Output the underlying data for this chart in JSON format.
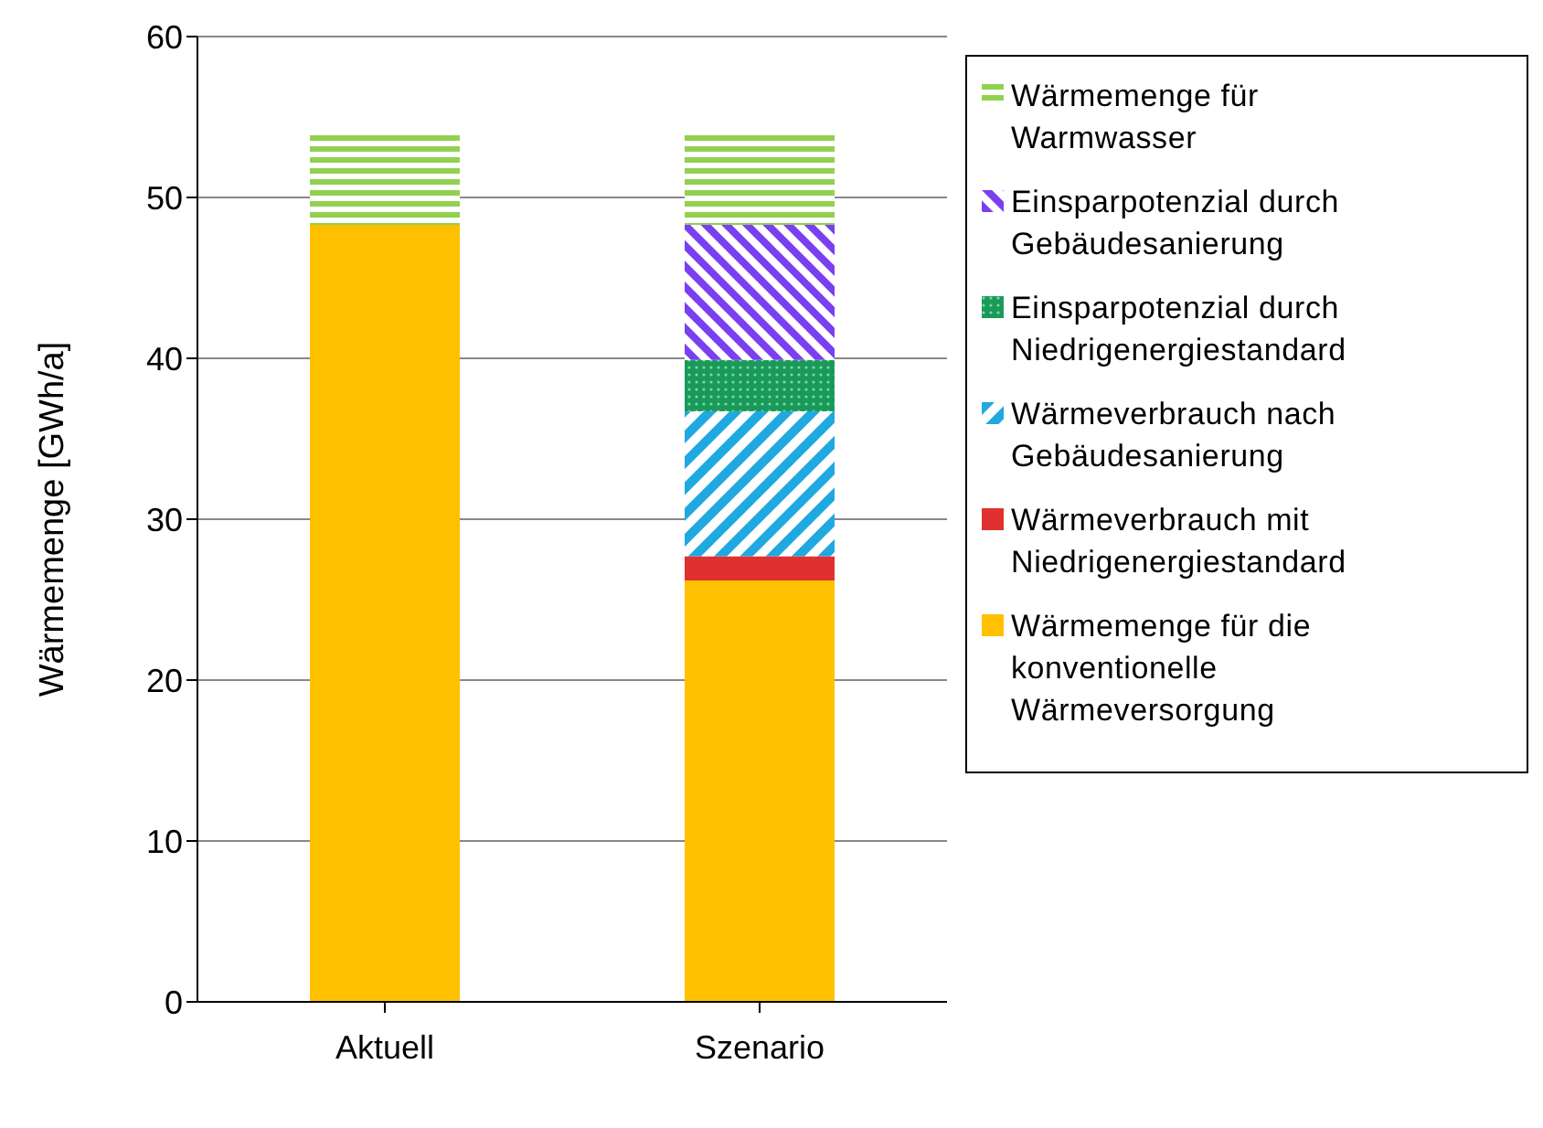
{
  "chart_data": {
    "type": "bar",
    "stacked": true,
    "categories": [
      "Aktuell",
      "Szenario"
    ],
    "ylabel": "Wärmemenge  [GWh/a]",
    "ylim": [
      0,
      60
    ],
    "yticks": [
      0,
      10,
      20,
      30,
      40,
      50,
      60
    ],
    "grid": "y",
    "legend": "right",
    "series": [
      {
        "name": "Wärmemenge für die konventionelle Wärmeversorgung",
        "color": "#ffc000",
        "values": [
          48.3,
          26.2
        ]
      },
      {
        "name": "Wärmeverbrauch mit Niedrigenergiestandard",
        "color": "#e03030",
        "values": [
          null,
          1.5
        ]
      },
      {
        "name": "Wärmeverbrauch nach Gebäudesanierung",
        "color": "#20a8e0",
        "values": [
          null,
          9.0
        ]
      },
      {
        "name": "Einsparpotenzial durch Niedrigenergiestandard",
        "color": "#1a9a5a",
        "values": [
          null,
          3.2
        ]
      },
      {
        "name": "Einsparpotenzial durch Gebäudesanierung",
        "color": "#7a3ff0",
        "values": [
          null,
          8.4
        ]
      },
      {
        "name": "Wärmemenge für Warmwasser",
        "color": "#92d050",
        "values": [
          5.9,
          5.9
        ]
      }
    ]
  }
}
